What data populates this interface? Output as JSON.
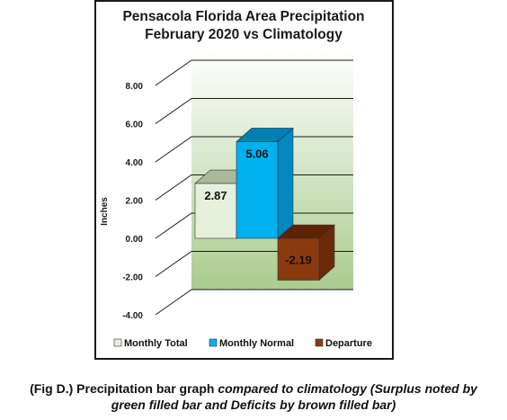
{
  "chart_data": {
    "type": "bar",
    "title": [
      "Pensacola Florida Area Precipitation",
      "February 2020 vs Climatology"
    ],
    "ylabel": "Inches",
    "xlabel": "",
    "ylim": [
      -4,
      8
    ],
    "yticks": [
      "8.00",
      "6.00",
      "4.00",
      "2.00",
      "0.00",
      "-2.00",
      "-4.00"
    ],
    "grid": true,
    "legend_position": "bottom",
    "series": [
      {
        "name": "Monthly Total",
        "value": 2.87,
        "label": "2.87",
        "color": "#e6efdc",
        "side": "#c2d3b2",
        "top": "#a9b999"
      },
      {
        "name": "Monthly Normal",
        "value": 5.06,
        "label": "5.06",
        "color": "#00b0f0",
        "side": "#0088c0",
        "top": "#007fb5"
      },
      {
        "name": "Departure",
        "value": -2.19,
        "label": "-2.19",
        "color": "#8b3a10",
        "side": "#6b2a08",
        "top": "#5e2206"
      }
    ]
  },
  "caption": {
    "fig": "(Fig D.)",
    "part1": " Precipitation  bar graph ",
    "part2": "compared to climatology (Surplus noted by",
    "line2": "green filled  bar and Deficits by brown filled bar)"
  }
}
